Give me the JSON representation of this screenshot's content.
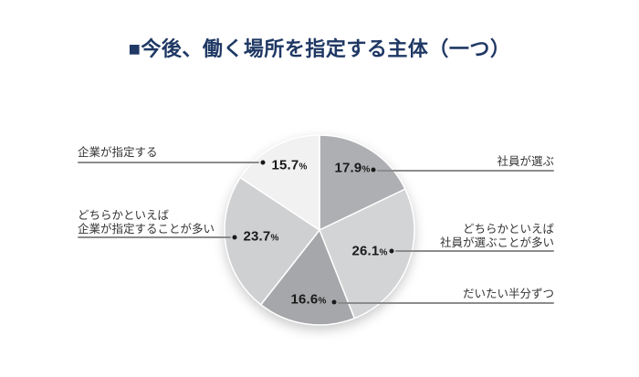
{
  "page": {
    "title": "■今後、働く場所を指定する主体（一つ）",
    "title_color": "#1f3864",
    "background_color": "#ffffff"
  },
  "chart_data": {
    "type": "pie",
    "title": "今後、働く場所を指定する主体（一つ）",
    "unit": "%",
    "start_angle_deg": 0,
    "direction": "clockwise",
    "legend_position": "callout-labels",
    "percent_sign": "%",
    "slices": [
      {
        "label": "社員が選ぶ",
        "label_lines": [
          "社員が選ぶ"
        ],
        "value": 17.9,
        "display_value": "17.9",
        "color": "#aeafb2",
        "callout_side": "right"
      },
      {
        "label": "どちらかといえば社員が選ぶことが多い",
        "label_lines": [
          "どちらかといえば",
          "社員が選ぶことが多い"
        ],
        "value": 26.1,
        "display_value": "26.1",
        "color": "#d3d4d6",
        "callout_side": "right"
      },
      {
        "label": "だいたい半分ずつ",
        "label_lines": [
          "だいたい半分ずつ"
        ],
        "value": 16.6,
        "display_value": "16.6",
        "color": "#a6a7aa",
        "callout_side": "right"
      },
      {
        "label": "どちらかといえば企業が指定することが多い",
        "label_lines": [
          "どちらかといえば",
          "企業が指定することが多い"
        ],
        "value": 23.7,
        "display_value": "23.7",
        "color": "#cfd0d2",
        "callout_side": "left"
      },
      {
        "label": "企業が指定する",
        "label_lines": [
          "企業が指定する"
        ],
        "value": 15.7,
        "display_value": "15.7",
        "color": "#f1f1f2",
        "callout_side": "left"
      }
    ]
  },
  "style": {
    "leader_line_color": "#8c8c8c",
    "dot_color": "#1a1a1a",
    "percent_text_color": "#1a1a1a",
    "label_text_color": "#333333",
    "slice_border_color": "#ffffff"
  }
}
